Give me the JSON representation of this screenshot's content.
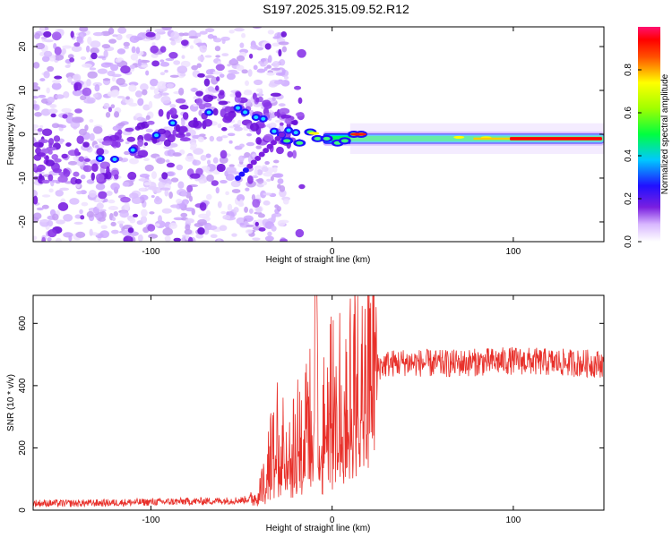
{
  "title": "S197.2025.315.09.52.R12",
  "chart_data": [
    {
      "type": "heatmap",
      "name": "spectrogram",
      "xlabel": "Height of straight line (km)",
      "ylabel": "Frequency (Hz)",
      "xlim": [
        -165,
        150
      ],
      "ylim": [
        -24.5,
        24.5
      ],
      "xticks": [
        -100,
        0,
        100
      ],
      "yticks": [
        -20,
        -10,
        0,
        10,
        20
      ],
      "colorbar": {
        "label": "Normalized spectral amplitude",
        "range": [
          0,
          1
        ],
        "ticks": [
          0.0,
          0.2,
          0.4,
          0.6,
          0.8
        ]
      },
      "ridge": {
        "description": "Energy concentrated near 0 Hz for heights above about -10 km; diffuse purple noise below",
        "points": [
          {
            "x": -125,
            "y": -6
          },
          {
            "x": -110,
            "y": -3
          },
          {
            "x": -90,
            "y": 2
          },
          {
            "x": -70,
            "y": 6
          },
          {
            "x": -48,
            "y": 5
          },
          {
            "x": -30,
            "y": 1
          },
          {
            "x": -10,
            "y": -1
          },
          {
            "x": 0,
            "y": -1
          },
          {
            "x": 15,
            "y": 0
          },
          {
            "x": 60,
            "y": -0.5
          },
          {
            "x": 100,
            "y": -1
          },
          {
            "x": 150,
            "y": -1
          }
        ]
      }
    },
    {
      "type": "line",
      "name": "snr",
      "xlabel": "Height of straight line (km)",
      "ylabel": "SNR (10 * v/v)",
      "xlim": [
        -165,
        150
      ],
      "ylim": [
        0,
        690
      ],
      "xticks": [
        -100,
        0,
        100
      ],
      "yticks": [
        0,
        200,
        400,
        600
      ],
      "color": "#e8302a",
      "series": [
        {
          "name": "SNR",
          "x": [
            -165,
            -140,
            -120,
            -100,
            -80,
            -60,
            -50,
            -42,
            -38,
            -34,
            -30,
            -26,
            -22,
            -18,
            -14,
            -10,
            -9,
            -8,
            -6,
            -4,
            -2,
            0,
            4,
            8,
            12,
            16,
            20,
            25,
            30,
            40,
            60,
            80,
            100,
            120,
            150
          ],
          "y": [
            22,
            22,
            24,
            26,
            28,
            30,
            32,
            40,
            90,
            180,
            240,
            260,
            240,
            280,
            300,
            310,
            690,
            320,
            250,
            330,
            380,
            350,
            420,
            380,
            430,
            410,
            440,
            460,
            470,
            475,
            470,
            475,
            480,
            475,
            470
          ]
        }
      ]
    }
  ]
}
